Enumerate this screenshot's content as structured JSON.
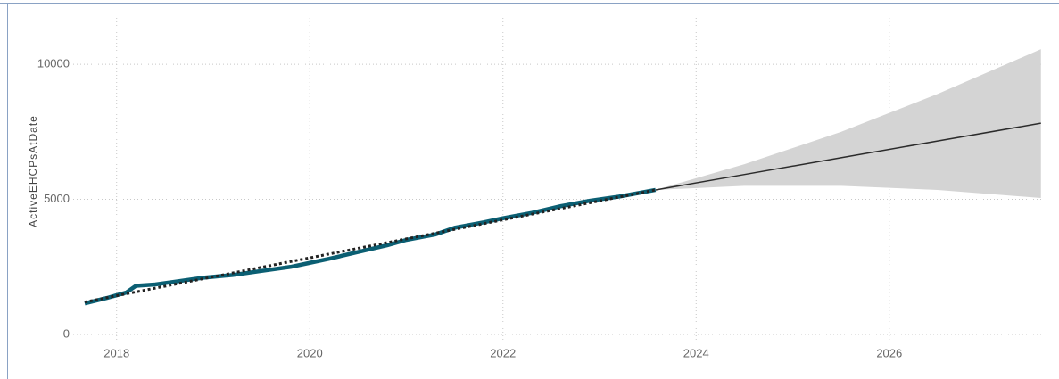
{
  "chart_data": {
    "type": "line",
    "y_label": "ActiveEHCPsAtDate",
    "xlim": [
      2017.55,
      2027.6
    ],
    "xticks": [
      2018,
      2020,
      2022,
      2024,
      2026
    ],
    "ylim": [
      -660,
      11720
    ],
    "yticks": [
      0,
      5000,
      10000
    ],
    "grid": true,
    "actual": {
      "color": "#0b5f73",
      "x": [
        2017.67,
        2017.9,
        2018.1,
        2018.2,
        2018.4,
        2018.6,
        2018.9,
        2019.2,
        2019.5,
        2019.8,
        2020.0,
        2020.2,
        2020.5,
        2020.8,
        2021.0,
        2021.3,
        2021.5,
        2021.8,
        2022.0,
        2022.3,
        2022.6,
        2022.9,
        2023.2,
        2023.58
      ],
      "values": [
        1150,
        1350,
        1550,
        1800,
        1850,
        1950,
        2100,
        2200,
        2350,
        2500,
        2650,
        2800,
        3050,
        3300,
        3500,
        3700,
        3950,
        4150,
        4300,
        4500,
        4750,
        4950,
        5100,
        5350
      ]
    },
    "trend": {
      "color": "#222222",
      "x": [
        2017.67,
        2023.58
      ],
      "values": [
        1200,
        5350
      ]
    },
    "forecast": {
      "color": "#2b2b2b",
      "band_color": "#d4d4d4",
      "x": [
        2023.58,
        2024.5,
        2025.5,
        2026.5,
        2027.57
      ],
      "values": [
        5350,
        5920,
        6540,
        7160,
        7820
      ],
      "lower": [
        5350,
        5500,
        5500,
        5350,
        5050
      ],
      "upper": [
        5350,
        6300,
        7500,
        8900,
        10560
      ]
    }
  }
}
